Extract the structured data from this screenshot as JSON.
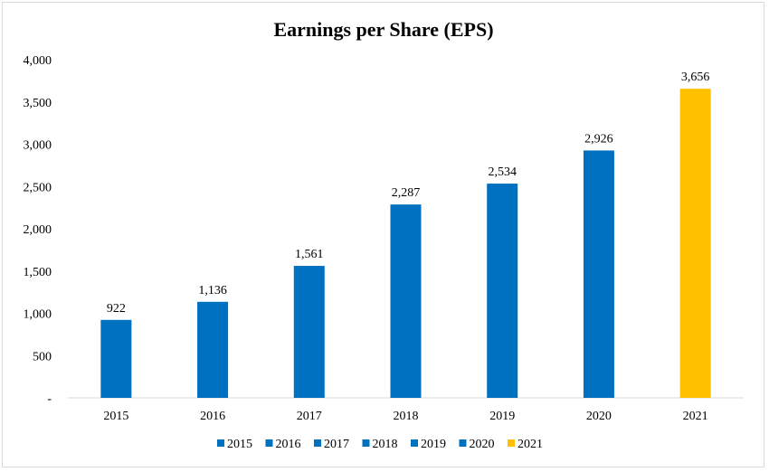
{
  "chart_data": {
    "type": "bar",
    "title": "Earnings per Share (EPS)",
    "categories": [
      "2015",
      "2016",
      "2017",
      "2018",
      "2019",
      "2020",
      "2021"
    ],
    "values": [
      922,
      1136,
      1561,
      2287,
      2534,
      2926,
      3656
    ],
    "data_labels": [
      "922",
      "1,136",
      "1,561",
      "2,287",
      "2,534",
      "2,926",
      "3,656"
    ],
    "bar_colors": [
      "#0070c0",
      "#0070c0",
      "#0070c0",
      "#0070c0",
      "#0070c0",
      "#0070c0",
      "#ffc000"
    ],
    "ylim": [
      0,
      4000
    ],
    "yticks": [
      0,
      500,
      1000,
      1500,
      2000,
      2500,
      3000,
      3500,
      4000
    ],
    "ytick_labels": [
      "-",
      "500",
      "1,000",
      "1,500",
      "2,000",
      "2,500",
      "3,000",
      "3,500",
      "4,000"
    ],
    "xlabel": "",
    "ylabel": "",
    "grid": false,
    "legend": {
      "placement": "bottom",
      "entries": [
        "2015",
        "2016",
        "2017",
        "2018",
        "2019",
        "2020",
        "2021"
      ]
    }
  }
}
